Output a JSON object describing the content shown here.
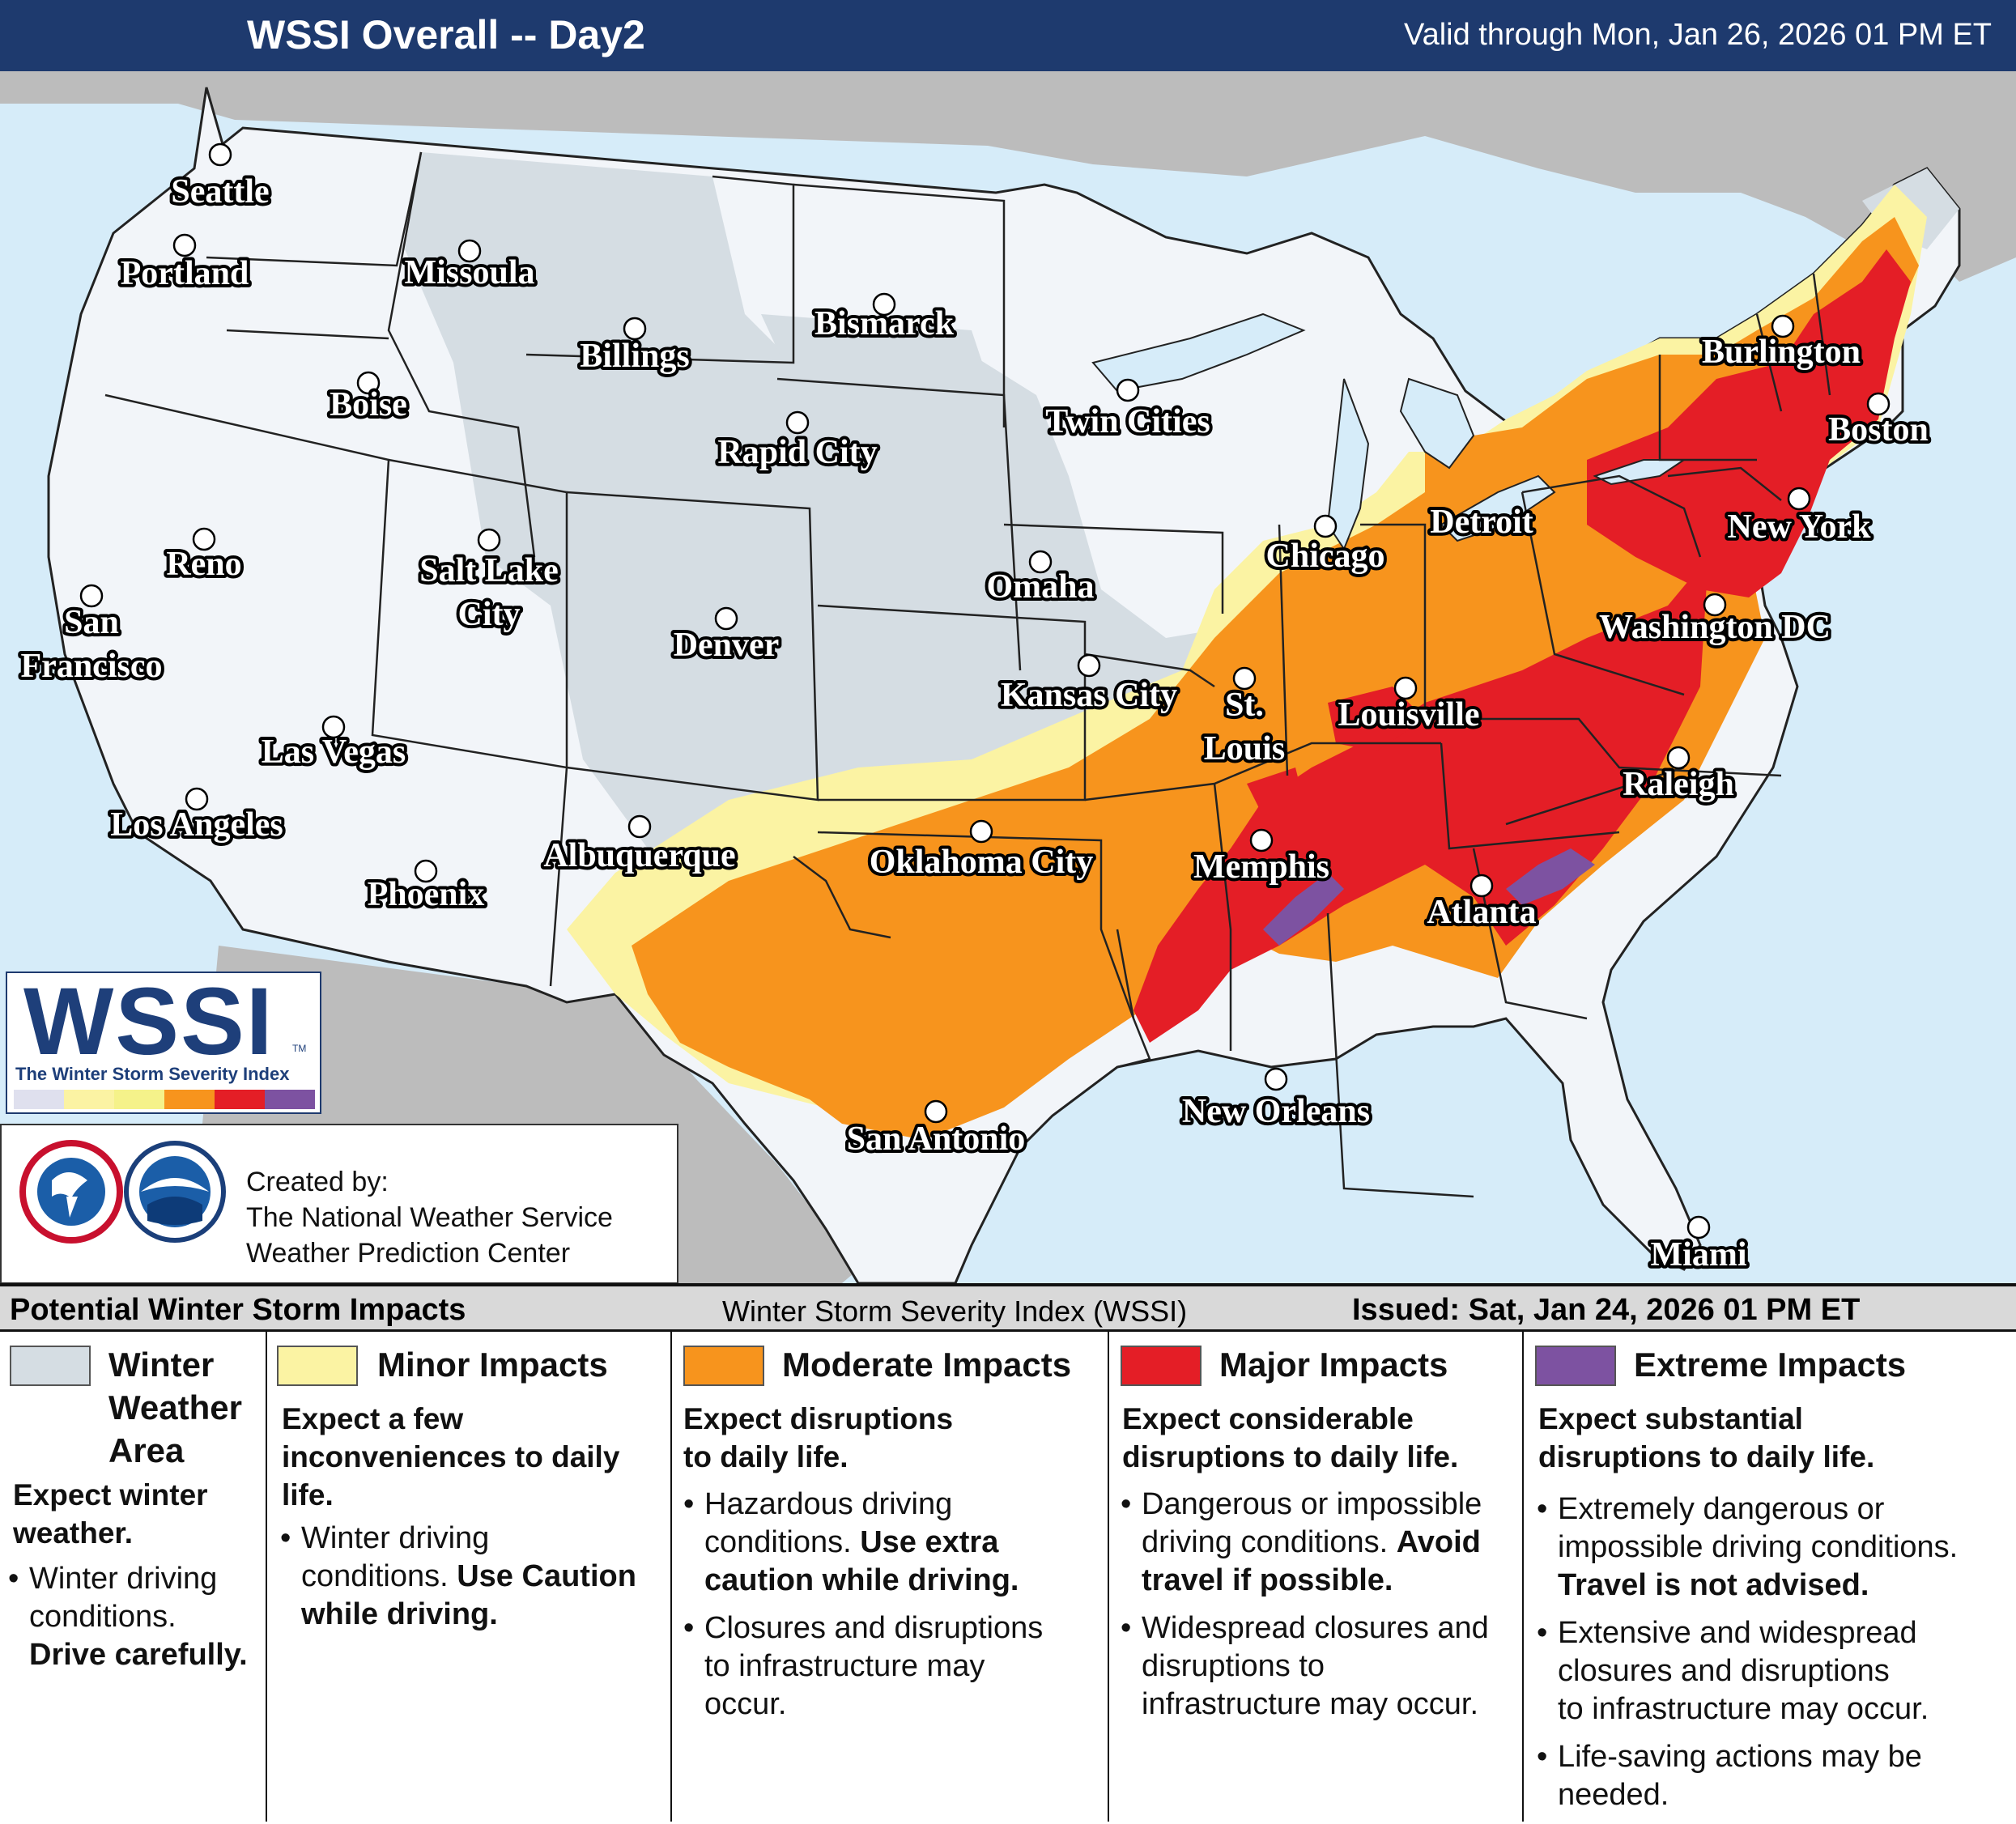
{
  "header": {
    "title": "WSSI Overall -- Day2",
    "valid": "Valid through Mon, Jan 26, 2026 01 PM ET"
  },
  "cities": [
    {
      "name": "Seattle"
    },
    {
      "name": "Portland"
    },
    {
      "name": "Missoula"
    },
    {
      "name": "Billings"
    },
    {
      "name": "Bismarck"
    },
    {
      "name": "Boise"
    },
    {
      "name": "Rapid City"
    },
    {
      "name": "Twin Cities"
    },
    {
      "name": "Burlington"
    },
    {
      "name": "Boston"
    },
    {
      "name": "New York"
    },
    {
      "name": "Detroit"
    },
    {
      "name": "Chicago"
    },
    {
      "name": "Reno"
    },
    {
      "name": "Salt Lake"
    },
    {
      "name": "City"
    },
    {
      "name": "San"
    },
    {
      "name": "Francisco"
    },
    {
      "name": "Omaha"
    },
    {
      "name": "Denver"
    },
    {
      "name": "Washington DC"
    },
    {
      "name": "Kansas City"
    },
    {
      "name": "St."
    },
    {
      "name": "Louis"
    },
    {
      "name": "Louisville"
    },
    {
      "name": "Las Vegas"
    },
    {
      "name": "Raleigh"
    },
    {
      "name": "Los Angeles"
    },
    {
      "name": "Albuquerque"
    },
    {
      "name": "Oklahoma City"
    },
    {
      "name": "Memphis"
    },
    {
      "name": "Phoenix"
    },
    {
      "name": "Atlanta"
    },
    {
      "name": "New Orleans"
    },
    {
      "name": "San Antonio"
    },
    {
      "name": "Miami"
    }
  ],
  "colors": {
    "winter_weather_area": "#d5dde3",
    "minor": "#fbf3a3",
    "moderate": "#f7941d",
    "major": "#e41e26",
    "extreme": "#7d52a1",
    "land": "#f2f5f9",
    "ocean": "#d6ecf9",
    "outside_land": "#bcbcbc",
    "header": "#1e3a6e"
  },
  "logo": {
    "wordmark": "WSSI",
    "tm": "TM",
    "subtitle": "The Winter Storm Severity Index",
    "scale_colors": [
      "#dfe0ee",
      "#fbf3a3",
      "#f5f28a",
      "#f7941d",
      "#e41e26",
      "#7d52a1"
    ]
  },
  "credits": {
    "line1": "Created by:",
    "line2": "The National Weather Service",
    "line3": "Weather Prediction Center",
    "nws_emblem": "nws-emblem-icon",
    "noaa_emblem": "noaa-emblem-icon"
  },
  "legend": {
    "left_title": "Potential Winter Storm Impacts",
    "center_title": "Winter Storm Severity Index (WSSI)",
    "issued": "Issued: Sat, Jan 24, 2026 01 PM ET",
    "categories": [
      {
        "name": [
          "Winter",
          "Weather",
          "Area"
        ],
        "expect": [
          "Expect winter",
          "weather."
        ],
        "bullets": [
          {
            "text": [
              "Winter driving",
              "conditions."
            ],
            "bold": [
              "Drive carefully."
            ]
          }
        ]
      },
      {
        "name": [
          "Minor Impacts"
        ],
        "expect": [
          "Expect a few",
          "inconveniences to daily",
          "life."
        ],
        "bullets": [
          {
            "text": [
              "Winter driving",
              "conditions."
            ],
            "bold": [
              "Use Caution",
              "while driving."
            ]
          }
        ]
      },
      {
        "name": [
          "Moderate Impacts"
        ],
        "expect": [
          "Expect disruptions",
          "to daily life."
        ],
        "bullets": [
          {
            "text": [
              "Hazardous driving",
              "conditions."
            ],
            "bold": [
              "Use extra",
              "caution while driving."
            ]
          },
          {
            "text": [
              "Closures and disruptions",
              "to infrastructure may",
              "occur."
            ],
            "bold": []
          }
        ]
      },
      {
        "name": [
          "Major Impacts"
        ],
        "expect": [
          "Expect considerable",
          "disruptions to daily life."
        ],
        "bullets": [
          {
            "text": [
              "Dangerous or impossible",
              "driving conditions."
            ],
            "bold": [
              "Avoid",
              "travel if possible."
            ]
          },
          {
            "text": [
              "Widespread closures and",
              "disruptions to",
              "infrastructure may occur."
            ],
            "bold": []
          }
        ]
      },
      {
        "name": [
          "Extreme Impacts"
        ],
        "expect": [
          "Expect substantial",
          "disruptions to daily life."
        ],
        "bullets": [
          {
            "text": [
              "Extremely dangerous or",
              "impossible driving conditions."
            ],
            "bold": [
              "Travel is not advised."
            ]
          },
          {
            "text": [
              "Extensive and widespread",
              "closures and disruptions",
              "to infrastructure may occur."
            ],
            "bold": []
          },
          {
            "text": [
              "Life-saving actions may be",
              "needed."
            ],
            "bold": []
          }
        ]
      }
    ]
  }
}
